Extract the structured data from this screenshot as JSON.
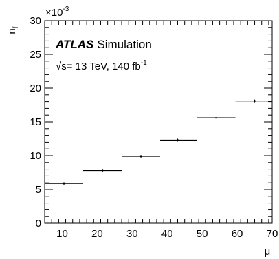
{
  "chart_data": {
    "type": "scatter",
    "style": "horizontal-error-bars",
    "title": "",
    "experiment": "ATLAS",
    "label": "Simulation",
    "energy_prefix": "√s= 13 TeV, 140 fb",
    "energy_exponent": "-1",
    "xlabel": "μ",
    "ylabel_main": "n",
    "ylabel_sub": "f",
    "y_multiplier": "×10",
    "y_multiplier_exponent": "-3",
    "xlim": [
      5,
      70
    ],
    "ylim": [
      0,
      30
    ],
    "x_ticks": [
      "10",
      "20",
      "30",
      "40",
      "50",
      "60",
      "70"
    ],
    "y_ticks": [
      "0",
      "5",
      "10",
      "15",
      "20",
      "25",
      "30"
    ],
    "legend": "none",
    "grid": false,
    "series": [
      {
        "points": [
          {
            "x": 10.5,
            "xlow": 5,
            "xhigh": 16,
            "y": 5.9
          },
          {
            "x": 21.5,
            "xlow": 16,
            "xhigh": 27,
            "y": 7.8
          },
          {
            "x": 32.5,
            "xlow": 27,
            "xhigh": 38,
            "y": 9.9
          },
          {
            "x": 43.0,
            "xlow": 38,
            "xhigh": 48.5,
            "y": 12.3
          },
          {
            "x": 54.0,
            "xlow": 48.5,
            "xhigh": 59.5,
            "y": 15.6
          },
          {
            "x": 65.0,
            "xlow": 59.5,
            "xhigh": 70,
            "y": 18.1
          }
        ]
      }
    ]
  }
}
